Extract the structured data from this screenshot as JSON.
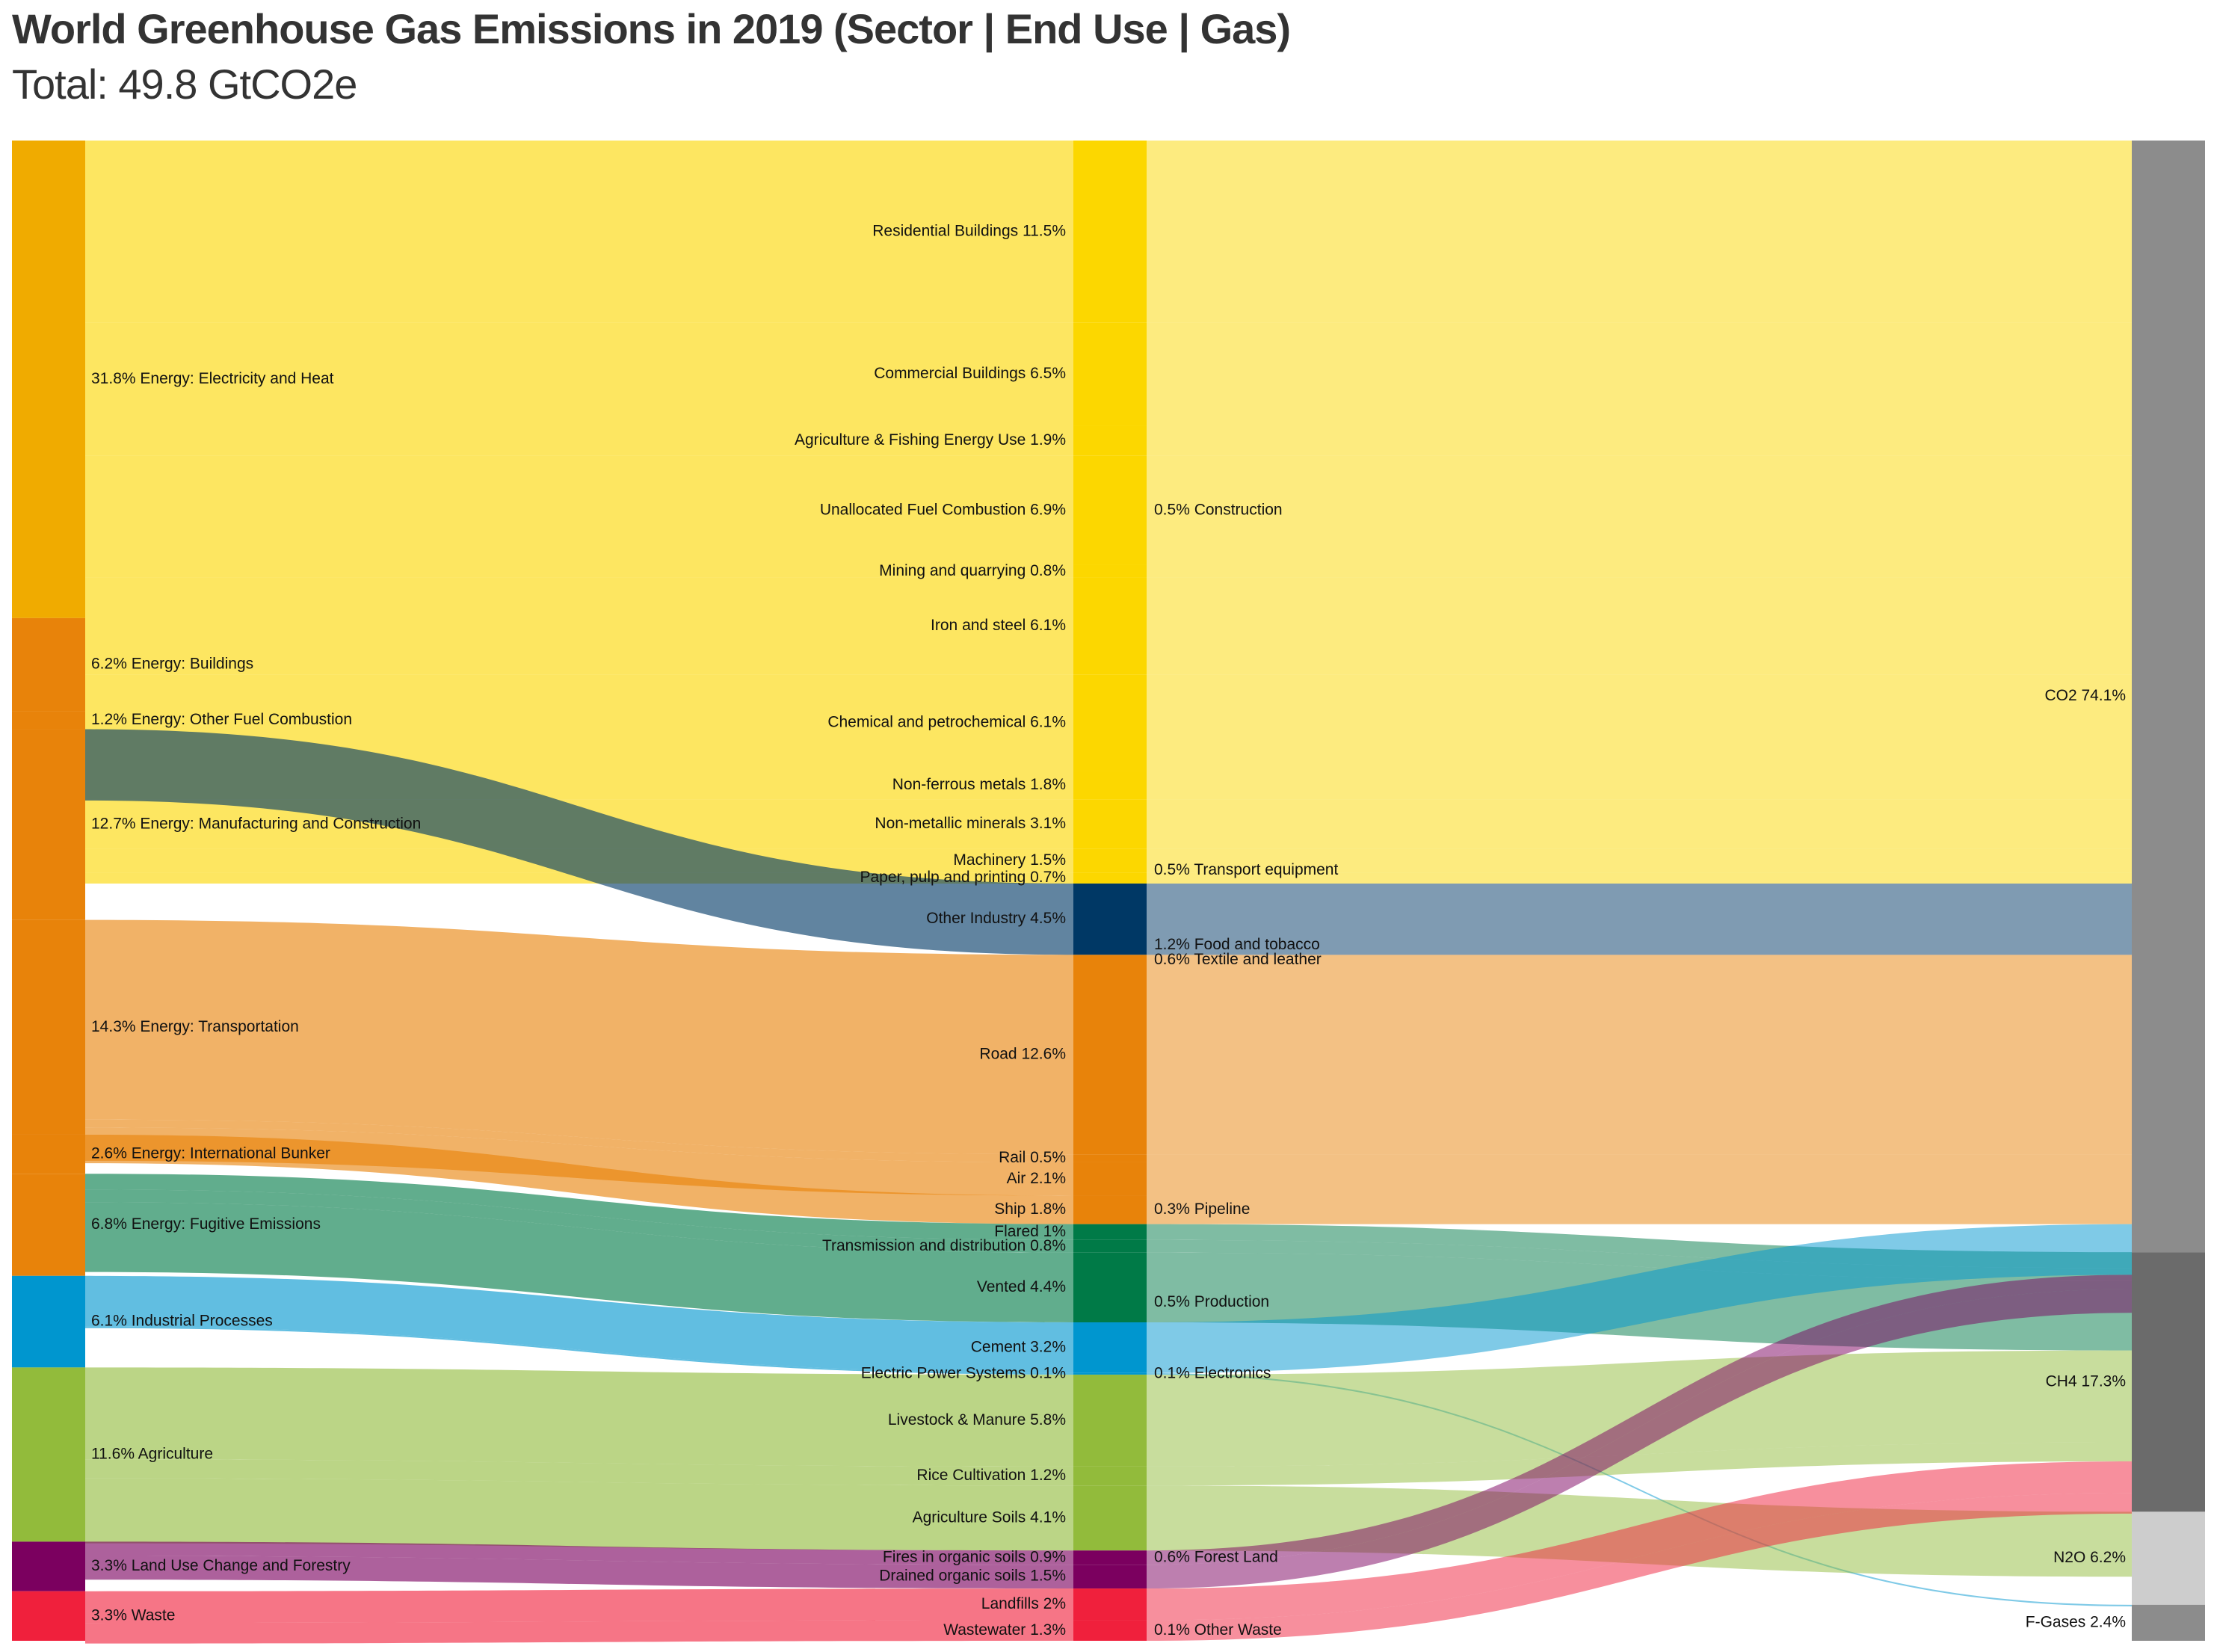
{
  "chart_data": {
    "type": "sankey",
    "title": "World Greenhouse Gas Emissions in 2019 (Sector | End Use | Gas)",
    "subtitle": "Total: 49.8 GtCO2e",
    "unit": "% of total emissions",
    "sectors": [
      {
        "label": "31.8% Energy: Electricity and Heat",
        "value": 31.8,
        "color": "#f0ab00"
      },
      {
        "label": "6.2% Energy: Buildings",
        "value": 6.2,
        "color": "#e8830a"
      },
      {
        "label": "1.2% Energy: Other Fuel Combustion",
        "value": 1.2,
        "color": "#e8830a"
      },
      {
        "label": "12.7% Energy: Manufacturing and Construction",
        "value": 12.7,
        "color": "#e8830a"
      },
      {
        "label": "14.3% Energy: Transportation",
        "value": 14.3,
        "color": "#e8830a"
      },
      {
        "label": "2.6% Energy: International Bunker",
        "value": 2.6,
        "color": "#e8830a"
      },
      {
        "label": "6.8% Energy: Fugitive Emissions",
        "value": 6.8,
        "color": "#e8830a"
      },
      {
        "label": "6.1% Industrial Processes",
        "value": 6.1,
        "color": "#0096cf"
      },
      {
        "label": "11.6% Agriculture",
        "value": 11.6,
        "color": "#92bb3b"
      },
      {
        "label": "3.3% Land Use Change and Forestry",
        "value": 3.3,
        "color": "#7b005f"
      },
      {
        "label": "3.3% Waste",
        "value": 3.3,
        "color": "#f0203c"
      }
    ],
    "end_uses": [
      {
        "label": "Residential Buildings 11.5%",
        "value": 11.5,
        "color": "#fcd700"
      },
      {
        "label": "Commercial Buildings 6.5%",
        "value": 6.5,
        "color": "#fcd700"
      },
      {
        "label": "Agriculture & Fishing Energy Use 1.9%",
        "value": 1.9,
        "color": "#fcd700"
      },
      {
        "label": "Unallocated Fuel Combustion 6.9%",
        "value": 6.9,
        "color": "#fcd700"
      },
      {
        "label": "Mining and quarrying 0.8%",
        "value": 0.8,
        "color": "#fcd700"
      },
      {
        "label": "Iron and steel 6.1%",
        "value": 6.1,
        "color": "#fcd700"
      },
      {
        "label": "Chemical and petrochemical 6.1%",
        "value": 6.1,
        "color": "#fcd700"
      },
      {
        "label": "Non-ferrous metals 1.8%",
        "value": 1.8,
        "color": "#fcd700"
      },
      {
        "label": "Non-metallic minerals 3.1%",
        "value": 3.1,
        "color": "#fcd700"
      },
      {
        "label": "Machinery 1.5%",
        "value": 1.5,
        "color": "#fcd700"
      },
      {
        "label": "Paper, pulp and printing 0.7%",
        "value": 0.7,
        "color": "#fcd700"
      },
      {
        "label": "Other Industry 4.5%",
        "value": 4.5,
        "color": "#003865"
      },
      {
        "label": "Road 12.6%",
        "value": 12.6,
        "color": "#e8830a"
      },
      {
        "label": "Rail 0.5%",
        "value": 0.5,
        "color": "#e8830a"
      },
      {
        "label": "Air 2.1%",
        "value": 2.1,
        "color": "#e8830a"
      },
      {
        "label": "Ship 1.8%",
        "value": 1.8,
        "color": "#e8830a"
      },
      {
        "label": "Flared 1%",
        "value": 1.0,
        "color": "#007a47"
      },
      {
        "label": "Transmission and distribution 0.8%",
        "value": 0.8,
        "color": "#007a47"
      },
      {
        "label": "Vented 4.4%",
        "value": 4.4,
        "color": "#007a47"
      },
      {
        "label": "Cement 3.2%",
        "value": 3.2,
        "color": "#0096cf"
      },
      {
        "label": "Electric Power Systems 0.1%",
        "value": 0.1,
        "color": "#0096cf"
      },
      {
        "label": "Livestock & Manure 5.8%",
        "value": 5.8,
        "color": "#92bb3b"
      },
      {
        "label": "Rice Cultivation 1.2%",
        "value": 1.2,
        "color": "#92bb3b"
      },
      {
        "label": "Agriculture Soils 4.1%",
        "value": 4.1,
        "color": "#92bb3b"
      },
      {
        "label": "Fires in organic soils 0.9%",
        "value": 0.9,
        "color": "#7b005f"
      },
      {
        "label": "Drained organic soils 1.5%",
        "value": 1.5,
        "color": "#7b005f"
      },
      {
        "label": "Landfills 2%",
        "value": 2.0,
        "color": "#f0203c"
      },
      {
        "label": "Wastewater 1.3%",
        "value": 1.3,
        "color": "#f0203c"
      }
    ],
    "middle_labels": [
      "0.5% Construction",
      "0.5% Transport equipment",
      "1.2% Food and tobacco",
      "0.6% Textile and leather",
      "0.3% Pipeline",
      "0.5% Production",
      "0.1% Electronics",
      "0.6% Forest Land",
      "0.1% Other Waste"
    ],
    "gases": [
      {
        "label": "CO2 74.1%",
        "value": 74.1,
        "color": "#8c8c8c"
      },
      {
        "label": "CH4 17.3%",
        "value": 17.3,
        "color": "#6b6b6b"
      },
      {
        "label": "N2O 6.2%",
        "value": 6.2,
        "color": "#cdcdcd"
      },
      {
        "label": "F-Gases 2.4%",
        "value": 2.4,
        "color": "#8c8c8c"
      }
    ]
  }
}
